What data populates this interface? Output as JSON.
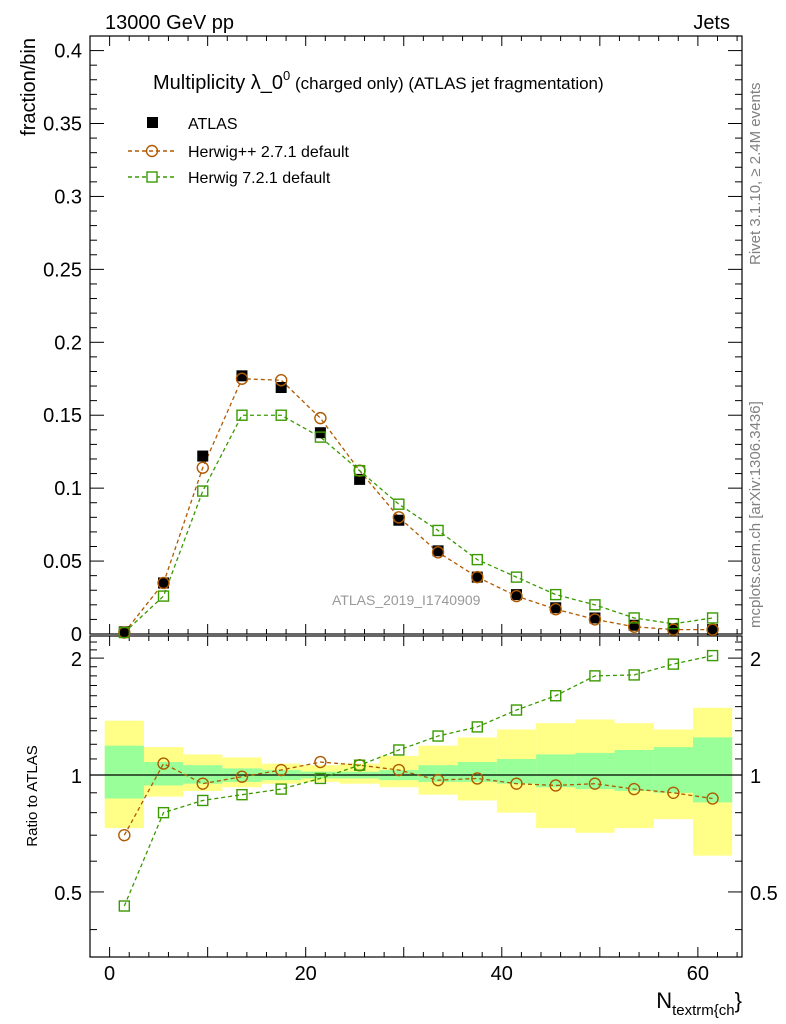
{
  "header": {
    "left": "13000 GeV pp",
    "right": "Jets"
  },
  "side_text": {
    "rivet": "Rivet 3.1.10, ≥ 2.4M events",
    "mcplots": "mcplots.cern.ch [arXiv:1306.3436]"
  },
  "chart_data": {
    "type": "line",
    "title_main": "Multiplicity λ_0",
    "title_sup": "0",
    "title_rest": " (charged only) (ATLAS jet fragmentation)",
    "watermark": "ATLAS_2019_I1740909",
    "xlabel_main": "N",
    "xlabel_sub": "textrm{ch",
    "xlabel_close": "}",
    "ylabel": "fraction/bin",
    "ratio_ylabel": "Ratio to ATLAS",
    "xlim": [
      -2,
      64.5
    ],
    "ylim": [
      0,
      0.41
    ],
    "ratio_ylim": [
      0.34,
      2.28
    ],
    "x_ticks": [
      "0",
      "20",
      "40",
      "60"
    ],
    "y_ticks": [
      "0",
      "0.05",
      "0.1",
      "0.15",
      "0.2",
      "0.25",
      "0.3",
      "0.35",
      "0.4"
    ],
    "ratio_ticks": [
      "0.5",
      "1",
      "2"
    ],
    "x": [
      1.5,
      5.5,
      9.5,
      13.5,
      17.5,
      21.5,
      25.5,
      29.5,
      33.5,
      37.5,
      41.5,
      45.5,
      49.5,
      53.5,
      57.5,
      61.5
    ],
    "bin_edges": [
      -0.5,
      3.5,
      7.5,
      11.5,
      15.5,
      19.5,
      23.5,
      27.5,
      31.5,
      35.5,
      39.5,
      43.5,
      47.5,
      51.5,
      55.5,
      59.5,
      63.5
    ],
    "series": [
      {
        "name": "ATLAS",
        "color": "#000000",
        "marker": "filled-square",
        "values": [
          0.0015,
          0.035,
          0.122,
          0.177,
          0.169,
          0.138,
          0.106,
          0.078,
          0.057,
          0.039,
          0.027,
          0.018,
          0.011,
          0.006,
          0.0035,
          0.003
        ]
      },
      {
        "name": "Herwig++ 2.7.1 default",
        "color": "#b05a00",
        "marker": "open-circle",
        "values": [
          0.001,
          0.035,
          0.114,
          0.175,
          0.174,
          0.148,
          0.112,
          0.08,
          0.056,
          0.039,
          0.026,
          0.017,
          0.01,
          0.005,
          0.003,
          0.003
        ],
        "ratio": [
          0.7,
          1.07,
          0.95,
          0.99,
          1.03,
          1.08,
          1.06,
          1.03,
          0.97,
          0.98,
          0.95,
          0.94,
          0.95,
          0.92,
          0.9,
          0.87
        ]
      },
      {
        "name": "Herwig 7.2.1 default",
        "color": "#3a9a00",
        "marker": "open-square",
        "values": [
          0.001,
          0.026,
          0.098,
          0.15,
          0.15,
          0.135,
          0.112,
          0.089,
          0.071,
          0.051,
          0.039,
          0.027,
          0.02,
          0.011,
          0.007,
          0.011
        ],
        "ratio": [
          0.46,
          0.8,
          0.86,
          0.89,
          0.92,
          0.98,
          1.06,
          1.16,
          1.26,
          1.33,
          1.47,
          1.6,
          1.8,
          1.81,
          1.93,
          2.03
        ]
      }
    ],
    "ratio_bands": {
      "stat_color": "#99ff99",
      "total_color": "#ffff88",
      "stat": [
        [
          0.87,
          1.19
        ],
        [
          0.94,
          1.08
        ],
        [
          0.95,
          1.06
        ],
        [
          0.96,
          1.04
        ],
        [
          0.97,
          1.03
        ],
        [
          0.98,
          1.02
        ],
        [
          0.98,
          1.02
        ],
        [
          0.97,
          1.03
        ],
        [
          0.96,
          1.06
        ],
        [
          0.96,
          1.08
        ],
        [
          0.95,
          1.1
        ],
        [
          0.93,
          1.13
        ],
        [
          0.92,
          1.14
        ],
        [
          0.91,
          1.16
        ],
        [
          0.9,
          1.18
        ],
        [
          0.85,
          1.25
        ]
      ],
      "total": [
        [
          0.73,
          1.38
        ],
        [
          0.88,
          1.18
        ],
        [
          0.91,
          1.13
        ],
        [
          0.93,
          1.11
        ],
        [
          0.95,
          1.07
        ],
        [
          0.96,
          1.06
        ],
        [
          0.95,
          1.07
        ],
        [
          0.93,
          1.12
        ],
        [
          0.89,
          1.19
        ],
        [
          0.86,
          1.25
        ],
        [
          0.8,
          1.31
        ],
        [
          0.73,
          1.36
        ],
        [
          0.71,
          1.39
        ],
        [
          0.73,
          1.36
        ],
        [
          0.77,
          1.31
        ],
        [
          0.62,
          1.49
        ]
      ]
    }
  }
}
